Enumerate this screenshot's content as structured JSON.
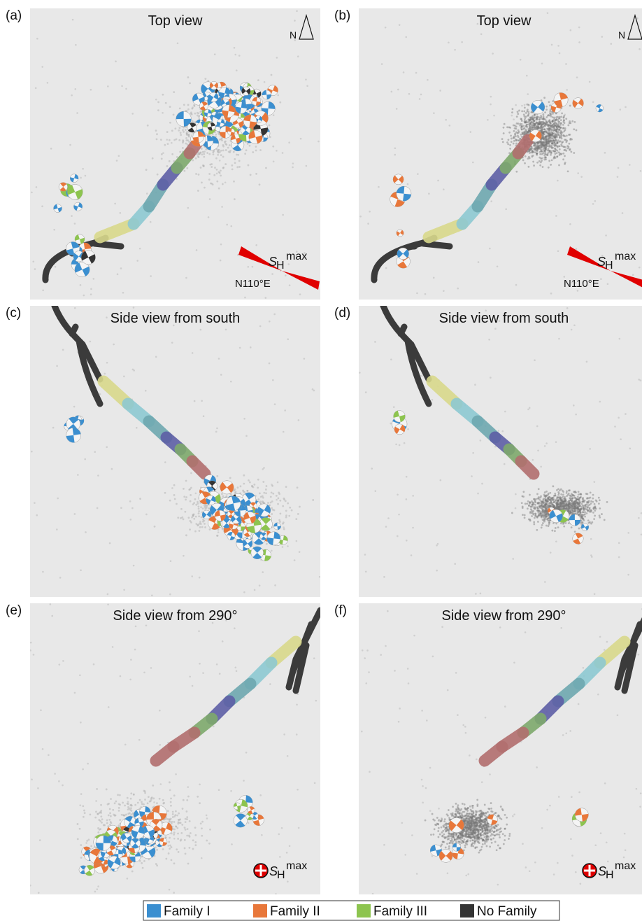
{
  "panels": [
    {
      "label": "(a)",
      "title": "Top view",
      "view": "top",
      "events": "all"
    },
    {
      "label": "(b)",
      "title": "Top view",
      "view": "top",
      "events": "few"
    },
    {
      "label": "(c)",
      "title": "Side view from south",
      "view": "south",
      "events": "all"
    },
    {
      "label": "(d)",
      "title": "Side view from south",
      "view": "south",
      "events": "few"
    },
    {
      "label": "(e)",
      "title": "Side view from 290°",
      "view": "w290",
      "events": "all"
    },
    {
      "label": "(f)",
      "title": "Side view from 290°",
      "view": "w290",
      "events": "few"
    }
  ],
  "north_label": "N",
  "shmax": {
    "symbol": "S",
    "subscript": "H",
    "superscript": "max"
  },
  "azimuth": "N110°E",
  "legend": [
    {
      "label": "Family I",
      "color": "#3b8fd0"
    },
    {
      "label": "Family II",
      "color": "#e8773a"
    },
    {
      "label": "Family III",
      "color": "#8dc44f"
    },
    {
      "label": "No Family",
      "color": "#333333"
    }
  ]
}
